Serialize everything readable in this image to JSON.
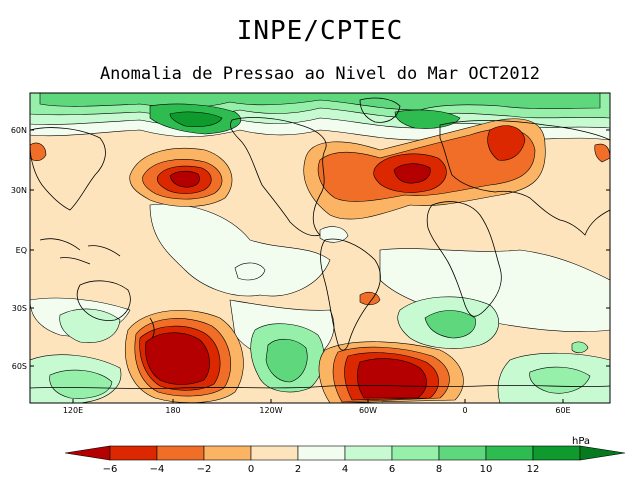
{
  "header": {
    "title": "INPE/CPTEC",
    "subtitle": "Anomalia de Pressao ao Nivel do Mar OCT2012"
  },
  "map": {
    "lat_labels": [
      "60N",
      "30N",
      "EQ",
      "30S",
      "60S"
    ],
    "lon_labels": [
      "120E",
      "180",
      "120W",
      "60W",
      "0",
      "60E"
    ]
  },
  "colorbar": {
    "unit": "hPa",
    "levels": [
      "-6",
      "-4",
      "-2",
      "0",
      "2",
      "4",
      "6",
      "8",
      "10",
      "12"
    ],
    "colors": [
      "#b40000",
      "#dc2800",
      "#f06e28",
      "#fab464",
      "#fde4bc",
      "#f2fdf0",
      "#c8fad2",
      "#96f0aa",
      "#5fd77d",
      "#2ebc50",
      "#0f9a2e",
      "#057a1e"
    ]
  }
}
